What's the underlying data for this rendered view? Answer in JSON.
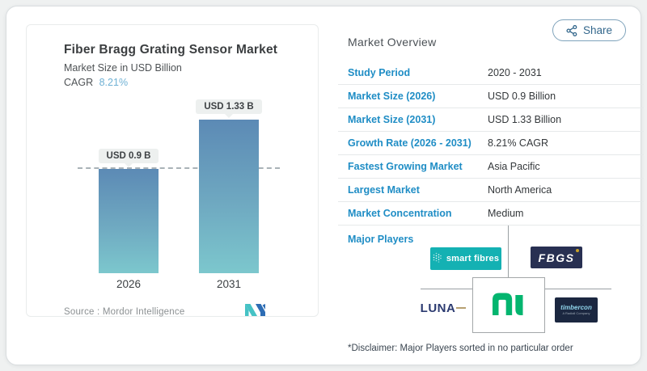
{
  "share_button": {
    "label": "Share"
  },
  "chart_card": {
    "title": "Fiber Bragg Grating Sensor Market",
    "subtitle": "Market Size in USD Billion",
    "cagr_label": "CAGR",
    "cagr_value": "8.21%",
    "source_label": "Source :  Mordor Intelligence"
  },
  "chart_data": {
    "type": "bar",
    "categories": [
      "2026",
      "2031"
    ],
    "values": [
      0.9,
      1.33
    ],
    "value_labels": [
      "USD 0.9 B",
      "USD 1.33 B"
    ],
    "title": "Fiber Bragg Grating Sensor Market",
    "ylabel": "Market Size in USD Billion",
    "ylim": [
      0,
      1.5
    ],
    "reference_line": 0.9,
    "grid": false,
    "legend": false,
    "bar_gradient": [
      "#5c8ab5",
      "#7cc7cd"
    ]
  },
  "overview": {
    "title": "Market Overview",
    "rows": [
      {
        "label": "Study Period",
        "value": "2020 - 2031"
      },
      {
        "label": "Market Size (2026)",
        "value": "USD 0.9 Billion"
      },
      {
        "label": "Market Size (2031)",
        "value": "USD 1.33 Billion"
      },
      {
        "label": "Growth Rate (2026 - 2031)",
        "value": "8.21% CAGR"
      },
      {
        "label": "Fastest Growing Market",
        "value": "Asia Pacific"
      },
      {
        "label": "Largest Market",
        "value": "North America"
      },
      {
        "label": "Market Concentration",
        "value": "Medium"
      }
    ],
    "major_players_label": "Major Players",
    "players": [
      {
        "name": "smart fibres"
      },
      {
        "name": "FBGS"
      },
      {
        "name": "LUNA"
      },
      {
        "name": "NI"
      },
      {
        "name": "timbercon",
        "subtext": "A Radiall Company"
      }
    ],
    "disclaimer": "*Disclaimer: Major Players sorted in no particular order"
  },
  "colors": {
    "accent_blue": "#1f8dc5",
    "cagr_blue": "#6fb1d4",
    "bar_top": "#5c8ab5",
    "bar_bottom": "#7cc7cd",
    "dashed_line": "#a9b2b7",
    "smartfibres_teal": "#14b1b3",
    "fbgs_navy": "#283052",
    "ni_green": "#03b56f",
    "luna_navy": "#2b3a70",
    "timbercon_navy": "#1b2740",
    "mordor_teal": "#45c2c5",
    "mordor_blue": "#2e6db4"
  }
}
